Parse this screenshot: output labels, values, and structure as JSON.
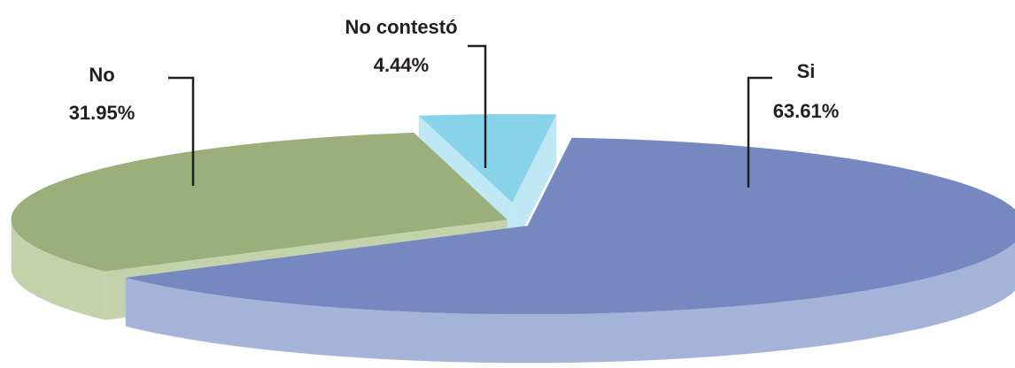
{
  "chart_data": {
    "type": "pie",
    "style": "3d-exploded",
    "slices": [
      {
        "name": "Si",
        "value": 63.61,
        "value_label": "63.61%",
        "color": "#7589c0",
        "side_color": "#a5b3d9"
      },
      {
        "name": "No",
        "value": 31.95,
        "value_label": "31.95%",
        "color": "#9aaf79",
        "side_color": "#c3d2ab"
      },
      {
        "name": "No contestó",
        "value": 4.44,
        "value_label": "4.44%",
        "color": "#86d3ea",
        "side_color": "#c0e7f4"
      }
    ],
    "legend": "none"
  }
}
